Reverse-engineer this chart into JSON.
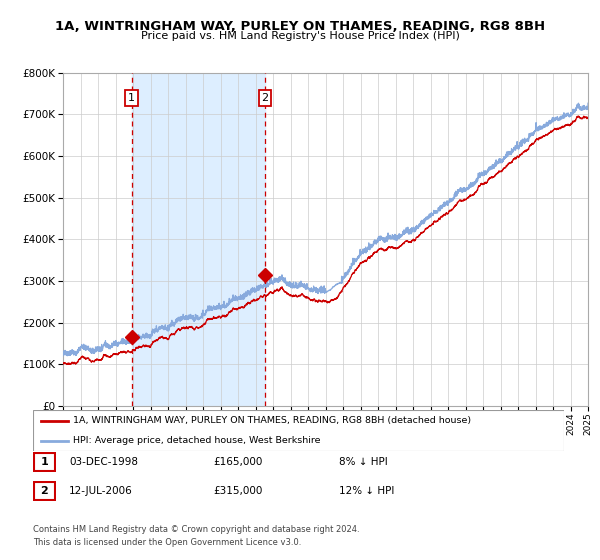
{
  "title": "1A, WINTRINGHAM WAY, PURLEY ON THAMES, READING, RG8 8BH",
  "subtitle": "Price paid vs. HM Land Registry's House Price Index (HPI)",
  "ylim": [
    0,
    800000
  ],
  "yticks": [
    0,
    100000,
    200000,
    300000,
    400000,
    500000,
    600000,
    700000,
    800000
  ],
  "ytick_labels": [
    "£0",
    "£100K",
    "£200K",
    "£300K",
    "£400K",
    "£500K",
    "£600K",
    "£700K",
    "£800K"
  ],
  "red_line_color": "#cc0000",
  "blue_line_color": "#88aadd",
  "shade_color": "#ddeeff",
  "grid_color": "#cccccc",
  "background_color": "#ffffff",
  "sale1_year": 1998.92,
  "sale1_price": 165000,
  "sale2_year": 2006.54,
  "sale2_price": 315000,
  "legend_red": "1A, WINTRINGHAM WAY, PURLEY ON THAMES, READING, RG8 8BH (detached house)",
  "legend_blue": "HPI: Average price, detached house, West Berkshire",
  "footer": "Contains HM Land Registry data © Crown copyright and database right 2024.\nThis data is licensed under the Open Government Licence v3.0.",
  "table_rows": [
    {
      "num": "1",
      "date": "03-DEC-1998",
      "price": "£165,000",
      "hpi": "8% ↓ HPI"
    },
    {
      "num": "2",
      "date": "12-JUL-2006",
      "price": "£315,000",
      "hpi": "12% ↓ HPI"
    }
  ],
  "xmin": 1995,
  "xmax": 2025
}
